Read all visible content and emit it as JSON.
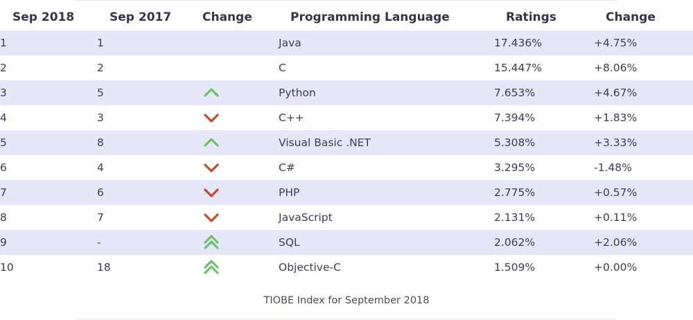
{
  "colors": {
    "row_stripe": "#e6e8f7",
    "trend_up": "#6abf6a",
    "trend_down": "#c7472b",
    "text": "#3b3b52"
  },
  "table": {
    "headers": {
      "current_month": "Sep 2018",
      "previous_month": "Sep 2017",
      "change_icon": "Change",
      "language": "Programming Language",
      "ratings": "Ratings",
      "change_pct": "Change"
    },
    "rows": [
      {
        "rank": "1",
        "prev": "1",
        "trend": "none",
        "trend_icon": "",
        "language": "Java",
        "rating": "17.436%",
        "change": "+4.75%"
      },
      {
        "rank": "2",
        "prev": "2",
        "trend": "none",
        "trend_icon": "",
        "language": "C",
        "rating": "15.447%",
        "change": "+8.06%"
      },
      {
        "rank": "3",
        "prev": "5",
        "trend": "up",
        "trend_icon": "chevron-up-icon",
        "language": "Python",
        "rating": "7.653%",
        "change": "+4.67%"
      },
      {
        "rank": "4",
        "prev": "3",
        "trend": "down",
        "trend_icon": "chevron-down-icon",
        "language": "C++",
        "rating": "7.394%",
        "change": "+1.83%"
      },
      {
        "rank": "5",
        "prev": "8",
        "trend": "up",
        "trend_icon": "chevron-up-icon",
        "language": "Visual Basic .NET",
        "rating": "5.308%",
        "change": "+3.33%"
      },
      {
        "rank": "6",
        "prev": "4",
        "trend": "down",
        "trend_icon": "chevron-down-icon",
        "language": "C#",
        "rating": "3.295%",
        "change": "-1.48%"
      },
      {
        "rank": "7",
        "prev": "6",
        "trend": "down",
        "trend_icon": "chevron-down-icon",
        "language": "PHP",
        "rating": "2.775%",
        "change": "+0.57%"
      },
      {
        "rank": "8",
        "prev": "7",
        "trend": "down",
        "trend_icon": "chevron-down-icon",
        "language": "JavaScript",
        "rating": "2.131%",
        "change": "+0.11%"
      },
      {
        "rank": "9",
        "prev": "-",
        "trend": "double-up",
        "trend_icon": "double-chevron-up-icon",
        "language": "SQL",
        "rating": "2.062%",
        "change": "+2.06%"
      },
      {
        "rank": "10",
        "prev": "18",
        "trend": "double-up",
        "trend_icon": "double-chevron-up-icon",
        "language": "Objective-C",
        "rating": "1.509%",
        "change": "+0.00%"
      }
    ]
  },
  "caption": "TIOBE Index for September 2018"
}
